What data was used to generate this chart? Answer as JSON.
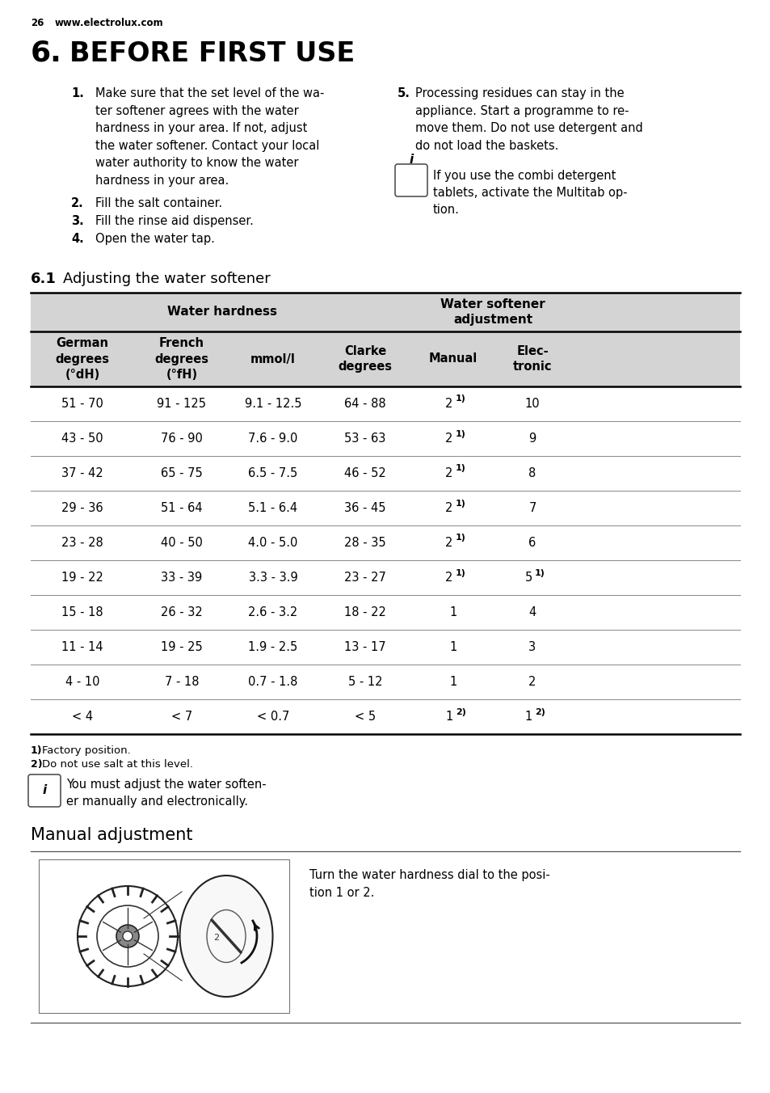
{
  "page_number": "26",
  "website": "www.electrolux.com",
  "section_number": "6.",
  "section_title": "BEFORE FIRST USE",
  "item1_text": "Make sure that the set level of the wa-\nter softener agrees with the water\nhardness in your area. If not, adjust\nthe water softener. Contact your local\nwater authority to know the water\nhardness in your area.",
  "item2_text": "Fill the salt container.",
  "item3_text": "Fill the rinse aid dispenser.",
  "item4_text": "Open the water tap.",
  "item5_text": "Processing residues can stay in the\nappliance. Start a programme to re-\nmove them. Do not use detergent and\ndo not load the baskets.",
  "info_box1_text": "If you use the combi detergent\ntablets, activate the Multitab op-\ntion.",
  "subsection_num": "6.1",
  "subsection_title": "Adjusting the water softener",
  "table_col1_header": "German\ndegrees\n(°dH)",
  "table_col2_header": "French\ndegrees\n(°fH)",
  "table_col3_header": "mmol/l",
  "table_col4_header": "Clarke\ndegrees",
  "table_col5_header": "Manual",
  "table_col6_header": "Elec-\ntronic",
  "table_rows": [
    [
      "51 - 70",
      "91 - 125",
      "9.1 - 12.5",
      "64 - 88"
    ],
    [
      "43 - 50",
      "76 - 90",
      "7.6 - 9.0",
      "53 - 63"
    ],
    [
      "37 - 42",
      "65 - 75",
      "6.5 - 7.5",
      "46 - 52"
    ],
    [
      "29 - 36",
      "51 - 64",
      "5.1 - 6.4",
      "36 - 45"
    ],
    [
      "23 - 28",
      "40 - 50",
      "4.0 - 5.0",
      "28 - 35"
    ],
    [
      "19 - 22",
      "33 - 39",
      "3.3 - 3.9",
      "23 - 27"
    ],
    [
      "15 - 18",
      "26 - 32",
      "2.6 - 3.2",
      "18 - 22"
    ],
    [
      "11 - 14",
      "19 - 25",
      "1.9 - 2.5",
      "13 - 17"
    ],
    [
      "4 - 10",
      "7 - 18",
      "0.7 - 1.8",
      "5 - 12"
    ],
    [
      "< 4",
      "< 7",
      "< 0.7",
      "< 5"
    ]
  ],
  "manual_col": [
    "2",
    "2",
    "2",
    "2",
    "2",
    "2",
    "1",
    "1",
    "1",
    "1"
  ],
  "manual_sup": [
    "1)",
    "1)",
    "1)",
    "1)",
    "1)",
    "1)",
    "",
    "",
    "",
    "2)"
  ],
  "elec_col": [
    "10",
    "9",
    "8",
    "7",
    "6",
    "5",
    "4",
    "3",
    "2",
    "1"
  ],
  "elec_sup": [
    "",
    "",
    "",
    "",
    "",
    "1)",
    "",
    "",
    "",
    "2)"
  ],
  "footnote1": "Factory position.",
  "footnote2": "Do not use salt at this level.",
  "info_box2_text": "You must adjust the water soften-\ner manually and electronically.",
  "manual_section": "Manual adjustment",
  "manual_text": "Turn the water hardness dial to the posi-\ntion 1 or 2.",
  "bg_color": "#ffffff",
  "header_bg": "#d4d4d4"
}
